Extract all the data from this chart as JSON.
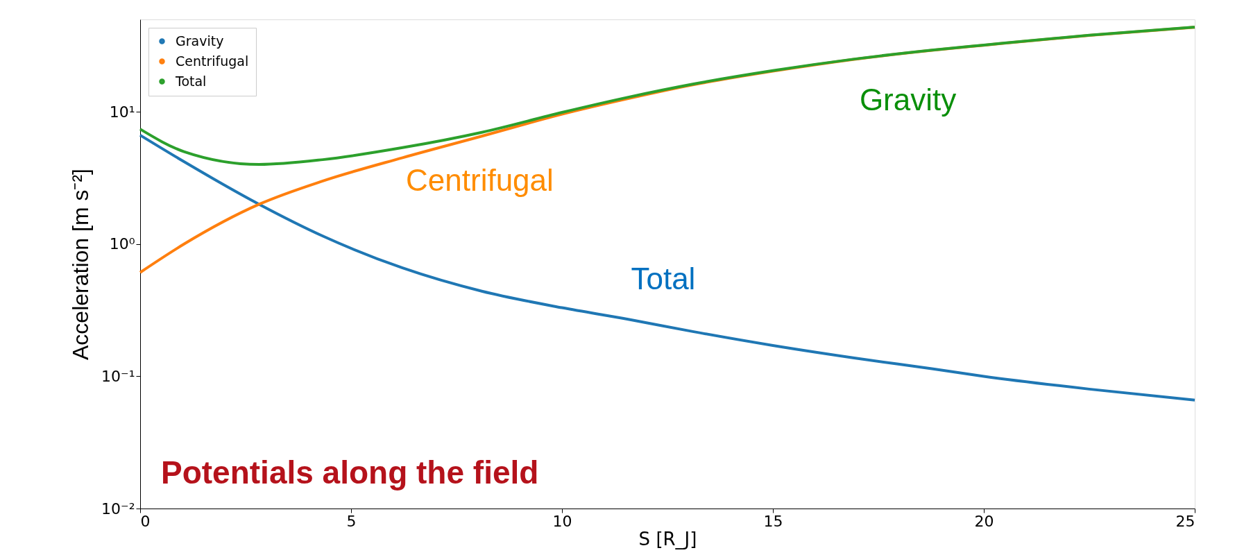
{
  "chart_data": {
    "type": "line",
    "title": "Potentials along the field",
    "xlabel": "S [R_J]",
    "ylabel": "Acceleration [m s⁻²]",
    "x": [
      0,
      1.04,
      2.82,
      4.33,
      6.22,
      8.1,
      10,
      11.57,
      13.1,
      15,
      16.9,
      18.77,
      20,
      22.5,
      25
    ],
    "series": [
      {
        "name": "Gravity",
        "color": "#1f77b4",
        "values": [
          6.66,
          4.2,
          2.0,
          1.15,
          0.66,
          0.44,
          0.33,
          0.27,
          0.218,
          0.171,
          0.138,
          0.114,
          0.1,
          0.08,
          0.066
        ]
      },
      {
        "name": "Centrifugal",
        "color": "#ff7f0e",
        "values": [
          0.61,
          1.0,
          2.0,
          3.0,
          4.5,
          6.55,
          9.6,
          12.6,
          16.0,
          20.3,
          24.9,
          29.2,
          31.9,
          37.9,
          43.6
        ]
      },
      {
        "name": "Total",
        "color": "#2ca02c",
        "values": [
          7.4,
          5.0,
          4.0,
          4.35,
          5.36,
          7.0,
          9.9,
          12.9,
          16.2,
          20.5,
          25.0,
          29.3,
          32.0,
          38.0,
          43.7
        ]
      }
    ],
    "xlim": [
      0,
      25
    ],
    "xticks": [
      0,
      5,
      10,
      15,
      20,
      25
    ],
    "ylim": [
      0.01,
      50
    ],
    "yticks": [
      {
        "value": 0.01,
        "label": "10⁻²"
      },
      {
        "value": 0.1,
        "label": "10⁻¹"
      },
      {
        "value": 1,
        "label": "10⁰"
      },
      {
        "value": 10,
        "label": "10¹"
      }
    ],
    "log": "y",
    "grid": false,
    "legend": "top left",
    "marker": "none",
    "line_style": "solid",
    "annotations": [
      "Gravity",
      "Centrifugal",
      "Total"
    ]
  }
}
